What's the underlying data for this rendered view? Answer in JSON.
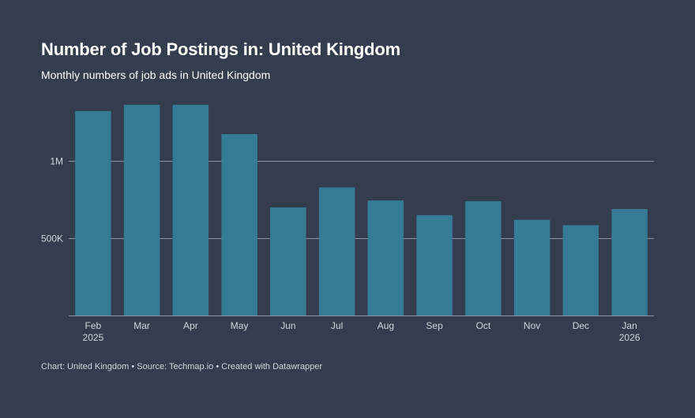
{
  "header": {
    "title": "Number of Job Postings in: United Kingdom",
    "subtitle": "Monthly numbers of job ads in United Kingdom"
  },
  "footer": {
    "chart_label": "Chart: United Kingdom",
    "source_label": "Source: Techmap.io",
    "created_label": "Created with Datawrapper",
    "separator": "•"
  },
  "colors": {
    "background": "#333d4d",
    "bar": "#367b96",
    "grid": "#8d969f",
    "axis_text": "#d2d6dc"
  },
  "chart_data": {
    "type": "bar",
    "title": "Number of Job Postings in: United Kingdom",
    "subtitle": "Monthly numbers of job ads in United Kingdom",
    "xlabel": "",
    "ylabel": "",
    "categories": [
      "Feb",
      "Mar",
      "Apr",
      "May",
      "Jun",
      "Jul",
      "Aug",
      "Sep",
      "Oct",
      "Nov",
      "Dec",
      "Jan"
    ],
    "category_sublabels": [
      "2025",
      "",
      "",
      "",
      "",
      "",
      "",
      "",
      "",
      "",
      "",
      "2026"
    ],
    "values": [
      1325000,
      1365000,
      1365000,
      1175000,
      700000,
      830000,
      745000,
      650000,
      740000,
      620000,
      585000,
      690000
    ],
    "ylim": [
      0,
      1380000
    ],
    "yticks": [
      {
        "value": 500000,
        "label": "500K"
      },
      {
        "value": 1000000,
        "label": "1M"
      }
    ],
    "grid": true
  }
}
